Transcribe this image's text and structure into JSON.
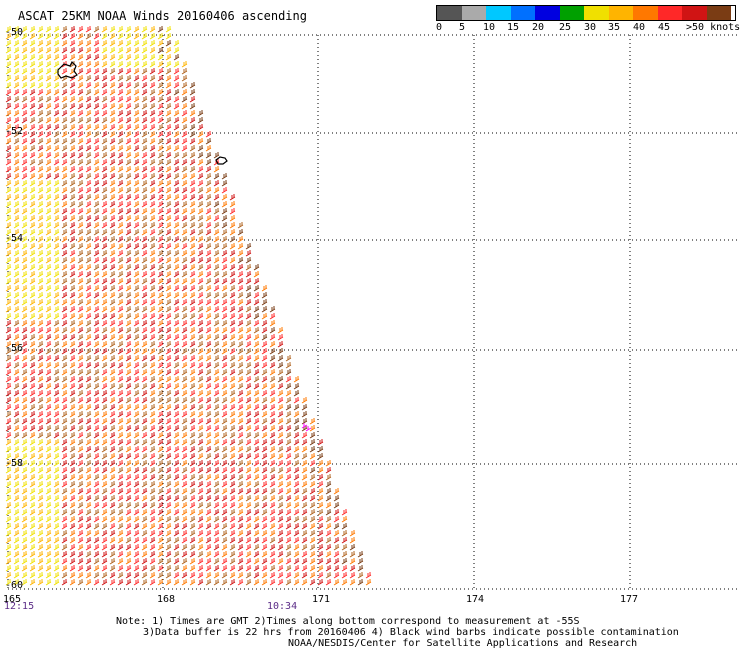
{
  "title": "ASCAT 25KM NOAA Winds 20160406 ascending",
  "legend": {
    "colors": [
      "#555555",
      "#aaaaaa",
      "#00c8ff",
      "#0070ff",
      "#0000e0",
      "#00a000",
      "#f0e000",
      "#ffb400",
      "#ff7800",
      "#ff2828",
      "#d01414",
      "#7a3c14",
      "#b06420",
      "#ff00ff",
      "#a000c8",
      "#5a0090"
    ],
    "labels": [
      "0",
      "5",
      "10",
      "15",
      "20",
      "25",
      "30",
      "35",
      "40",
      "45",
      ">50 knots"
    ]
  },
  "lat_labels": [
    "-50",
    "-52",
    "-54",
    "-56",
    "-58",
    "-60"
  ],
  "lon_labels": [
    "165",
    "168",
    "171",
    "174",
    "177"
  ],
  "time_labels": [
    "12:15",
    "10:34"
  ],
  "notes": [
    "Note: 1) Times are GMT 2)Times along bottom correspond to measurement at -55S",
    "3)Data buffer is 22 hrs from 20160406 4) Black wind barbs indicate possible contamination",
    "NOAA/NESDIS/Center for Satellite Applications and Research"
  ]
}
